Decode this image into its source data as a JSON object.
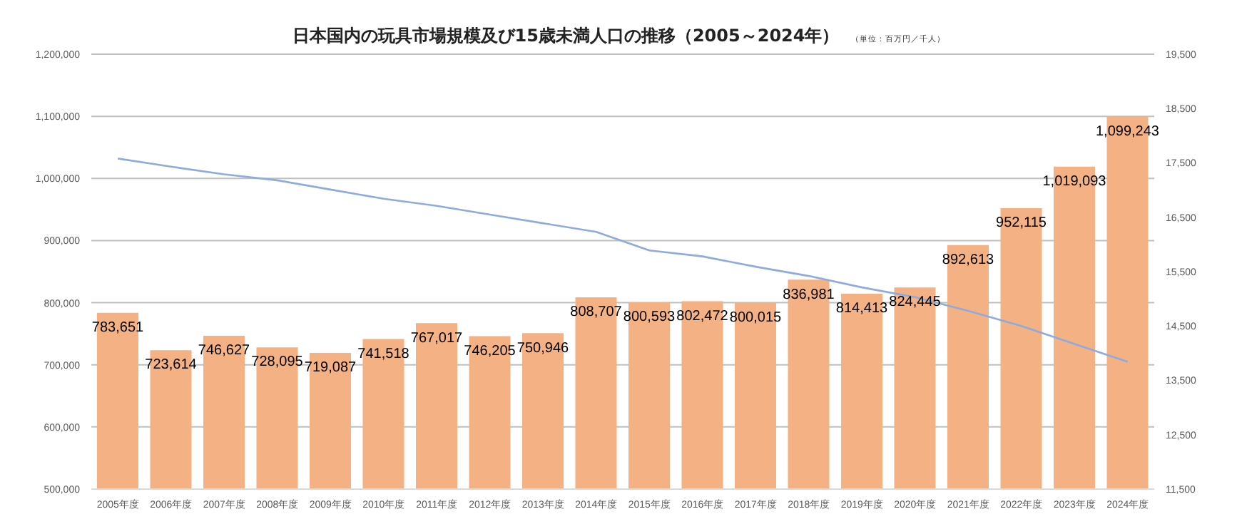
{
  "chart_data": {
    "type": "bar",
    "title": "日本国内の玩具市場規模及び15歳未満人口の推移（2005～2024年）",
    "subtitle": "（単位：百万円／千人）",
    "categories": [
      "2005年度",
      "2006年度",
      "2007年度",
      "2008年度",
      "2009年度",
      "2010年度",
      "2011年度",
      "2012年度",
      "2013年度",
      "2014年度",
      "2015年度",
      "2016年度",
      "2017年度",
      "2018年度",
      "2019年度",
      "2020年度",
      "2021年度",
      "2022年度",
      "2023年度",
      "2024年度"
    ],
    "series": [
      {
        "color": "#f4b183",
        "values": [
          783651,
          723614,
          746627,
          728095,
          719087,
          741518,
          767017,
          746205,
          750946,
          808707,
          800593,
          802472,
          800015,
          836981,
          814413,
          824445,
          892613,
          952115,
          1019093,
          1099243
        ],
        "value_labels": [
          "783,651",
          "723,614",
          "746,627",
          "728,095",
          "719,087",
          "741,518",
          "767,017",
          "746,205",
          "750,946",
          "808,707",
          "800,593",
          "802,472",
          "800,015",
          "836,981",
          "814,413",
          "824,445",
          "892,613",
          "952,115",
          "1,019,093",
          "1,099,243"
        ]
      },
      {
        "type": "line",
        "axis": "y2",
        "color": "#8faadc",
        "values": [
          17580,
          17430,
          17290,
          17180,
          17010,
          16840,
          16710,
          16550,
          16390,
          16230,
          15890,
          15780,
          15590,
          15420,
          15210,
          15030,
          14780,
          14500,
          14170,
          13840
        ]
      }
    ],
    "ylim": [
      500000,
      1200000
    ],
    "yticks": [
      {
        "value": 500000,
        "label": "500,000"
      },
      {
        "value": 600000,
        "label": "600,000"
      },
      {
        "value": 700000,
        "label": "700,000"
      },
      {
        "value": 800000,
        "label": "800,000"
      },
      {
        "value": 900000,
        "label": "900,000"
      },
      {
        "value": 1000000,
        "label": "1,000,000"
      },
      {
        "value": 1100000,
        "label": "1,100,000"
      },
      {
        "value": 1200000,
        "label": "1,200,000"
      }
    ],
    "y2lim": [
      11500,
      19500
    ],
    "y2ticks": [
      {
        "value": 11500,
        "label": "11,500"
      },
      {
        "value": 12500,
        "label": "12,500"
      },
      {
        "value": 13500,
        "label": "13,500"
      },
      {
        "value": 14500,
        "label": "14,500"
      },
      {
        "value": 15500,
        "label": "15,500"
      },
      {
        "value": 16500,
        "label": "16,500"
      },
      {
        "value": 17500,
        "label": "17,500"
      },
      {
        "value": 18500,
        "label": "18,500"
      },
      {
        "value": 19500,
        "label": "19,500"
      }
    ],
    "grid": "y",
    "marker": "none",
    "legend": false
  }
}
